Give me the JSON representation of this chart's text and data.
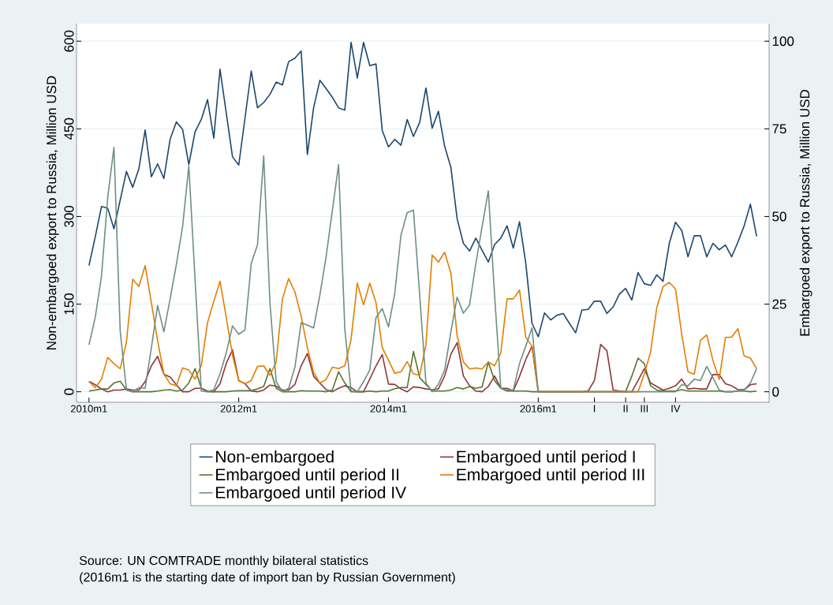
{
  "chart_data": {
    "type": "line",
    "x": [
      "2010-01",
      "2010-02",
      "2010-03",
      "2010-04",
      "2010-05",
      "2010-06",
      "2010-07",
      "2010-08",
      "2010-09",
      "2010-10",
      "2010-11",
      "2010-12",
      "2011-01",
      "2011-02",
      "2011-03",
      "2011-04",
      "2011-05",
      "2011-06",
      "2011-07",
      "2011-08",
      "2011-09",
      "2011-10",
      "2011-11",
      "2011-12",
      "2012-01",
      "2012-02",
      "2012-03",
      "2012-04",
      "2012-05",
      "2012-06",
      "2012-07",
      "2012-08",
      "2012-09",
      "2012-10",
      "2012-11",
      "2012-12",
      "2013-01",
      "2013-02",
      "2013-03",
      "2013-04",
      "2013-05",
      "2013-06",
      "2013-07",
      "2013-08",
      "2013-09",
      "2013-10",
      "2013-11",
      "2013-12",
      "2014-01",
      "2014-02",
      "2014-03",
      "2014-04",
      "2014-05",
      "2014-06",
      "2014-07",
      "2014-08",
      "2014-09",
      "2014-10",
      "2014-11",
      "2014-12",
      "2015-01",
      "2015-02",
      "2015-03",
      "2015-04",
      "2015-05",
      "2015-06",
      "2015-07",
      "2015-08",
      "2015-09",
      "2015-10",
      "2015-11",
      "2015-12",
      "2016-01",
      "2016-02",
      "2016-03",
      "2016-04",
      "2016-05",
      "2016-06",
      "2016-07",
      "2016-08",
      "2016-09",
      "2016-10",
      "2016-11",
      "2016-12",
      "2017-01",
      "2017-02",
      "2017-03",
      "2017-04",
      "2017-05",
      "2017-06",
      "2017-07",
      "2017-08",
      "2017-09",
      "2017-10",
      "2017-11",
      "2017-12",
      "2018-01",
      "2018-02",
      "2018-03",
      "2018-04",
      "2018-05",
      "2018-06",
      "2018-07",
      "2018-08",
      "2018-09",
      "2018-10",
      "2018-11",
      "2018-12"
    ],
    "series": [
      {
        "name": "Non-embargoed",
        "color": "#1a476f",
        "axis": "y",
        "values": [
          216,
          265,
          317,
          314,
          279,
          328,
          377,
          350,
          382,
          448,
          368,
          390,
          365,
          432,
          462,
          449,
          389,
          445,
          466,
          500,
          434,
          552,
          477,
          402,
          388,
          468,
          549,
          486,
          495,
          509,
          530,
          525,
          565,
          571,
          583,
          406,
          486,
          533,
          519,
          504,
          486,
          482,
          598,
          537,
          598,
          558,
          561,
          447,
          419,
          432,
          422,
          466,
          437,
          461,
          520,
          451,
          480,
          420,
          384,
          296,
          254,
          241,
          263,
          242,
          222,
          252,
          263,
          284,
          246,
          291,
          220,
          117,
          94,
          135,
          123,
          131,
          134,
          117,
          101,
          140,
          141,
          155,
          155,
          134,
          145,
          167,
          177,
          157,
          204,
          185,
          182,
          200,
          189,
          254,
          290,
          276,
          231,
          267,
          267,
          231,
          254,
          243,
          251,
          231,
          256,
          284,
          321,
          266
        ]
      },
      {
        "name": "Embargoed until period I",
        "color": "#90353b",
        "axis": "y2",
        "values": [
          3.0,
          2.0,
          0.8,
          0,
          0.5,
          0.5,
          0.8,
          0.5,
          0.5,
          2.9,
          7.4,
          10.1,
          5.0,
          4.2,
          2.0,
          0,
          0,
          1.0,
          1.0,
          0.2,
          0,
          2.3,
          8.1,
          12.0,
          3.2,
          2.3,
          0.2,
          0,
          0.5,
          1.9,
          1.6,
          0.5,
          0.5,
          2.1,
          7.4,
          10.9,
          4.4,
          2.5,
          0.6,
          0,
          1.0,
          1.7,
          1.2,
          0,
          0,
          3.6,
          7.4,
          10.6,
          2.2,
          2.1,
          0.8,
          0,
          1.4,
          1.2,
          0.8,
          0.6,
          0.8,
          4.5,
          10.7,
          14.0,
          4.5,
          1.7,
          0.2,
          0,
          1.5,
          4.5,
          1.0,
          1.0,
          0.2,
          4.4,
          9.2,
          13.0,
          0,
          0,
          0,
          0,
          0,
          0,
          0,
          0,
          0.2,
          3.2,
          13.5,
          11.7,
          0.5,
          0.2,
          0,
          0,
          3.2,
          6.6,
          2.5,
          1.5,
          0.5,
          1.0,
          1.7,
          3.6,
          0.8,
          1.0,
          0.8,
          0.8,
          4.9,
          4.9,
          2.3,
          1.7,
          0.6,
          0.6,
          2.0,
          2.3
        ]
      },
      {
        "name": "Embargoed until period II",
        "color": "#55752f",
        "axis": "y2",
        "values": [
          0.2,
          0.5,
          0.8,
          0.8,
          2.5,
          3.0,
          0.5,
          0,
          0,
          0,
          0,
          0.2,
          0.5,
          0.6,
          0.2,
          0.5,
          2.5,
          6.6,
          1.0,
          0,
          0,
          0,
          0,
          0.2,
          0.3,
          0.3,
          0.3,
          0.8,
          1.5,
          6.6,
          1.0,
          0,
          0,
          0,
          0.3,
          0.2,
          0.2,
          0.2,
          0,
          0.5,
          5.7,
          2.5,
          0,
          0,
          0,
          0.2,
          0,
          0.2,
          0.2,
          0.9,
          1.2,
          1.2,
          11.5,
          4.0,
          2.1,
          0.2,
          0.2,
          0.2,
          0.5,
          1.2,
          0.8,
          1.5,
          1.0,
          1.4,
          8.5,
          3.2,
          1.0,
          0.2,
          0.2,
          0.2,
          0.2,
          0,
          0,
          0,
          0,
          0,
          0,
          0,
          0,
          0,
          0,
          0,
          0,
          0,
          0,
          0,
          0,
          4.5,
          9.6,
          8.0,
          1.7,
          0.5,
          0.2,
          0.2,
          0.2,
          0.6,
          0.2,
          0.2,
          0.2,
          0.2,
          0.2,
          0.2,
          0,
          0,
          0.2,
          0.2,
          0,
          0.2
        ]
      },
      {
        "name": "Embargoed until period III",
        "color": "#e37e00",
        "axis": "y2",
        "values": [
          2.9,
          1.2,
          3.6,
          9.8,
          8.0,
          6.6,
          14.1,
          32.1,
          30.0,
          36.0,
          25.4,
          14.5,
          5.1,
          2.3,
          1.7,
          6.8,
          6.2,
          3.6,
          7.5,
          19.7,
          25.8,
          31.5,
          21.2,
          10.4,
          3.2,
          2.3,
          3.2,
          7.2,
          7.4,
          4.7,
          8.5,
          26.5,
          32.3,
          28.5,
          21.6,
          12.6,
          5.5,
          2.5,
          3.5,
          7.0,
          6.6,
          7.4,
          14.9,
          31.0,
          24.8,
          31.0,
          25.4,
          12.6,
          9.0,
          5.3,
          5.7,
          8.6,
          5.1,
          4.7,
          13.4,
          39.0,
          37.0,
          39.8,
          33.8,
          16.0,
          8.5,
          6.5,
          6.8,
          6.5,
          8.5,
          7.4,
          11.1,
          26.5,
          26.5,
          29.0,
          15.6,
          13.0,
          0,
          0,
          0,
          0,
          0,
          0,
          0,
          0,
          0,
          0,
          0,
          0,
          0,
          0,
          0,
          0,
          0,
          5.1,
          11.3,
          24.0,
          30.0,
          31.2,
          29.3,
          16.4,
          5.7,
          5.0,
          14.7,
          16.2,
          8.9,
          3.5,
          15.5,
          15.6,
          18.0,
          10.2,
          9.6,
          6.6
        ]
      },
      {
        "name": "Embargoed until period IV",
        "color": "#6e8e84",
        "axis": "y2",
        "values": [
          13.4,
          21.2,
          32.9,
          55.4,
          69.7,
          17.3,
          0.6,
          0,
          1.2,
          1.0,
          12.6,
          24.6,
          17.1,
          26.5,
          36.3,
          47.1,
          64.4,
          32,
          0.2,
          0,
          0.6,
          5.1,
          11.1,
          18.8,
          16.4,
          17.6,
          36.6,
          41.9,
          67.3,
          25.4,
          2.9,
          0,
          1.0,
          7.0,
          19.7,
          19.0,
          18.2,
          27.6,
          38.5,
          51.7,
          64.8,
          17.9,
          0.2,
          0,
          2.9,
          6.2,
          21.2,
          23.7,
          18.5,
          28.0,
          44.7,
          51.1,
          51.8,
          27.6,
          2.5,
          0,
          2.1,
          6.2,
          17.1,
          27.0,
          22.4,
          24.8,
          36.6,
          47.1,
          57.3,
          27.6,
          1.0,
          0.5,
          0.5,
          8.1,
          13.0,
          18.2,
          0,
          0,
          0,
          0,
          0,
          0,
          0,
          0,
          0,
          0,
          0,
          0,
          0,
          0,
          0,
          0,
          0,
          0,
          0,
          0,
          0,
          0,
          0,
          2.0,
          1.7,
          3.6,
          3.2,
          7.2,
          4.0,
          0.5,
          0,
          0,
          0.2,
          0.5,
          2.5,
          6.6
        ]
      }
    ],
    "xlim": [
      "2009-11",
      "2019-02"
    ],
    "xticks": [
      {
        "value": "2010-01",
        "label": "2010m1"
      },
      {
        "value": "2012-01",
        "label": "2012m1"
      },
      {
        "value": "2014-01",
        "label": "2014m1"
      },
      {
        "value": "2016-01",
        "label": "2016m1"
      },
      {
        "value": "2016-10",
        "label": "I"
      },
      {
        "value": "2017-03",
        "label": "II"
      },
      {
        "value": "2017-06",
        "label": "III"
      },
      {
        "value": "2017-11",
        "label": "IV"
      }
    ],
    "ylim": [
      -18,
      630
    ],
    "yticks": [
      0,
      150,
      300,
      450,
      600
    ],
    "y2lim": [
      -3,
      105
    ],
    "y2ticks": [
      0,
      25,
      50,
      75,
      100
    ],
    "ylabel": "Non-embargoed export to Russia, Million USD",
    "y2label": "Embargoed export to Russia, Million USD",
    "grid": "y",
    "legend": "bottom",
    "annotations": [
      "Source: UN COMTRADE monthly bilateral statistics",
      "(2016m1 is the starting date of import ban by Russian Government)"
    ]
  }
}
